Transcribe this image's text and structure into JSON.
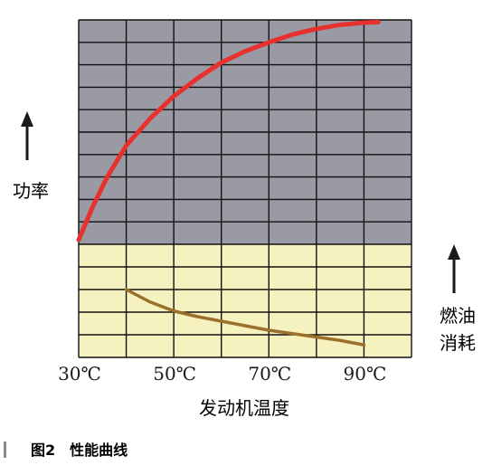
{
  "chart_data": {
    "type": "line",
    "caption": "图2　性能曲线",
    "xlabel": "发动机温度",
    "x_tick_labels": [
      "30℃",
      "50℃",
      "70℃",
      "90℃"
    ],
    "x_ticks": [
      30,
      50,
      70,
      90
    ],
    "xlim": [
      30,
      100
    ],
    "upper_axis_label": "功率",
    "lower_axis_label_lines": [
      "燃油",
      "消耗"
    ],
    "grid": true,
    "upper_panel": {
      "name": "功率",
      "background": "#999aa3",
      "rows": 10,
      "ylim": [
        0,
        10
      ],
      "color": "#e8312f",
      "x": [
        30,
        33,
        36,
        40,
        45,
        50,
        55,
        60,
        65,
        70,
        75,
        80,
        85,
        90,
        93
      ],
      "y": [
        0.2,
        1.7,
        3.0,
        4.4,
        5.6,
        6.6,
        7.4,
        8.1,
        8.6,
        9.0,
        9.35,
        9.6,
        9.78,
        9.88,
        9.9
      ]
    },
    "lower_panel": {
      "name": "燃油消耗",
      "background": "#f5f2bf",
      "rows": 5,
      "ylim": [
        0,
        5
      ],
      "color": "#9b6f2c",
      "x": [
        40,
        45,
        50,
        55,
        60,
        65,
        70,
        75,
        80,
        85,
        90
      ],
      "y": [
        3.0,
        2.45,
        2.05,
        1.8,
        1.6,
        1.4,
        1.2,
        1.05,
        0.9,
        0.75,
        0.55
      ]
    }
  }
}
